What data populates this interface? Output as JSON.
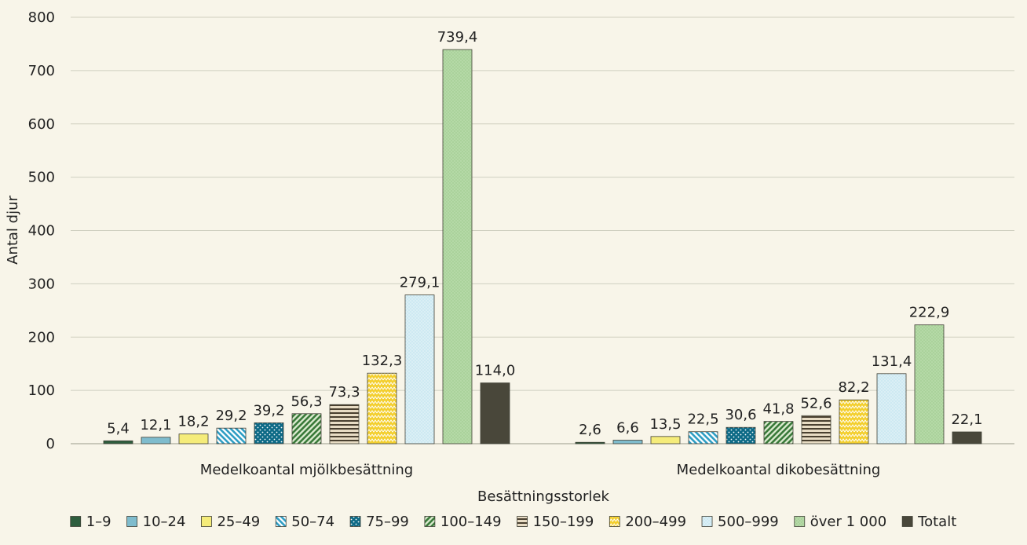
{
  "chart_data": {
    "type": "bar",
    "categories": [
      "Medelkoantal mjölkbesättning",
      "Medelkoantal dikobesättning"
    ],
    "series": [
      {
        "name": "1–9",
        "values": [
          5.4,
          2.6
        ],
        "labels": [
          "5,4",
          "2,6"
        ],
        "color": "#2e5e3e",
        "pattern": "solid"
      },
      {
        "name": "10–24",
        "values": [
          12.1,
          6.6
        ],
        "labels": [
          "12,1",
          "6,6"
        ],
        "color": "#7fbccd",
        "pattern": "solid"
      },
      {
        "name": "25–49",
        "values": [
          18.2,
          13.5
        ],
        "labels": [
          "18,2",
          "13,5"
        ],
        "color": "#f5ec7a",
        "pattern": "solid"
      },
      {
        "name": "50–74",
        "values": [
          29.2,
          22.5
        ],
        "labels": [
          "29,2",
          "22,5"
        ],
        "color": "#2f9ec4",
        "pattern": "diag-back"
      },
      {
        "name": "75–99",
        "values": [
          39.2,
          30.6
        ],
        "labels": [
          "39,2",
          "30,6"
        ],
        "color": "#0d6a86",
        "pattern": "dots"
      },
      {
        "name": "100–149",
        "values": [
          56.3,
          41.8
        ],
        "labels": [
          "56,3",
          "41,8"
        ],
        "color": "#3a7a3a",
        "pattern": "diag-fwd"
      },
      {
        "name": "150–199",
        "values": [
          73.3,
          52.6
        ],
        "labels": [
          "73,3",
          "52,6"
        ],
        "color": "#4a4030",
        "pattern": "horiz"
      },
      {
        "name": "200–499",
        "values": [
          132.3,
          82.2
        ],
        "labels": [
          "132,3",
          "82,2"
        ],
        "color": "#f3cf2e",
        "pattern": "zigzag"
      },
      {
        "name": "500–999",
        "values": [
          279.1,
          131.4
        ],
        "labels": [
          "279,1",
          "131,4"
        ],
        "color": "#cde9f2",
        "pattern": "fine-dots"
      },
      {
        "name": "över 1 000",
        "values": [
          739.4,
          222.9
        ],
        "labels": [
          "739,4",
          "222,9"
        ],
        "color": "#a8d29a",
        "pattern": "fine-dots-green"
      },
      {
        "name": "Totalt",
        "values": [
          114.0,
          22.1
        ],
        "labels": [
          "114,0",
          "22,1"
        ],
        "color": "#49473a",
        "pattern": "solid"
      }
    ],
    "xlabel": "Besättningsstorlek",
    "ylabel": "Antal djur",
    "ylim": [
      0,
      800
    ],
    "yticks": [
      0,
      100,
      200,
      300,
      400,
      500,
      600,
      700,
      800
    ],
    "grid": true,
    "legend": "bottom"
  }
}
